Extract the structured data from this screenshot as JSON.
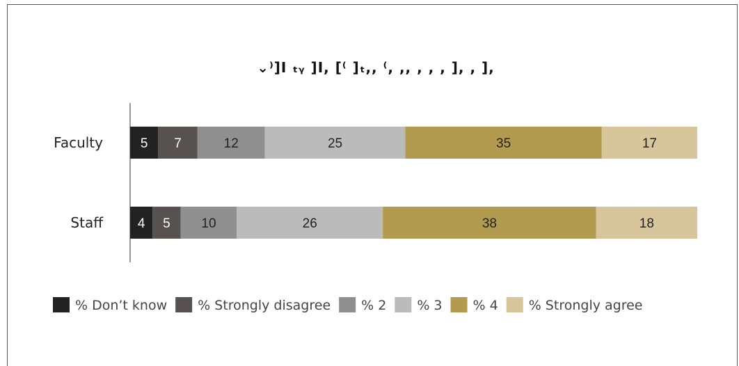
{
  "chart_data": {
    "type": "bar",
    "orientation": "horizontal",
    "stacked": true,
    "title": "⌄⁾]I ₜᵧ ]I, [⁽ ]ₜ,, ⁽, ,, , , , ], , ],",
    "categories": [
      "Faculty",
      "Staff"
    ],
    "series": [
      {
        "name": "% Don’t know",
        "values": [
          5,
          4
        ],
        "color": "#222222",
        "label_color": "#ffffff"
      },
      {
        "name": "% Strongly disagree",
        "values": [
          7,
          5
        ],
        "color": "#57514f",
        "label_color": "#ffffff"
      },
      {
        "name": "% 2",
        "values": [
          12,
          10
        ],
        "color": "#8f8f8f",
        "label_color": "#222222"
      },
      {
        "name": "% 3",
        "values": [
          25,
          26
        ],
        "color": "#bbbbbb",
        "label_color": "#222222"
      },
      {
        "name": "% 4",
        "values": [
          35,
          38
        ],
        "color": "#b29a4f",
        "label_color": "#222222"
      },
      {
        "name": "% Strongly agree",
        "values": [
          17,
          18
        ],
        "color": "#d7c59b",
        "label_color": "#222222"
      }
    ],
    "legend_position": "bottom",
    "grid": false
  }
}
